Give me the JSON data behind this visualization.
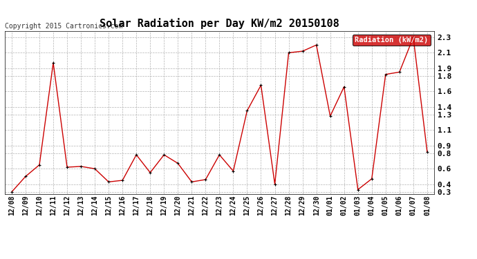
{
  "title": "Solar Radiation per Day KW/m2 20150108",
  "copyright_text": "Copyright 2015 Cartronics.com",
  "legend_label": "Radiation (kW/m2)",
  "legend_bg": "#cc0000",
  "legend_fg": "#ffffff",
  "line_color": "#cc0000",
  "marker_color": "#000000",
  "bg_color": "#ffffff",
  "grid_color": "#aaaaaa",
  "dates": [
    "12/08",
    "12/09",
    "12/10",
    "12/11",
    "12/12",
    "12/13",
    "12/14",
    "12/15",
    "12/16",
    "12/17",
    "12/18",
    "12/19",
    "12/20",
    "12/21",
    "12/22",
    "12/23",
    "12/24",
    "12/25",
    "12/26",
    "12/27",
    "12/28",
    "12/29",
    "12/30",
    "01/01",
    "01/02",
    "01/03",
    "01/04",
    "01/05",
    "01/06",
    "01/07",
    "01/08"
  ],
  "values": [
    0.3,
    0.5,
    0.65,
    1.97,
    0.62,
    0.63,
    0.6,
    0.43,
    0.45,
    0.78,
    0.55,
    0.78,
    0.67,
    0.43,
    0.46,
    0.78,
    0.57,
    1.35,
    1.68,
    0.4,
    2.1,
    2.12,
    2.2,
    1.28,
    1.66,
    0.33,
    0.47,
    1.82,
    1.85,
    2.3,
    0.82
  ],
  "ylim": [
    0.27,
    2.38
  ],
  "yticks": [
    0.3,
    0.4,
    0.6,
    0.8,
    0.9,
    1.1,
    1.3,
    1.4,
    1.6,
    1.8,
    1.9,
    2.1,
    2.3
  ],
  "title_fontsize": 11,
  "copyright_fontsize": 7,
  "tick_fontsize": 7,
  "legend_fontsize": 7.5
}
